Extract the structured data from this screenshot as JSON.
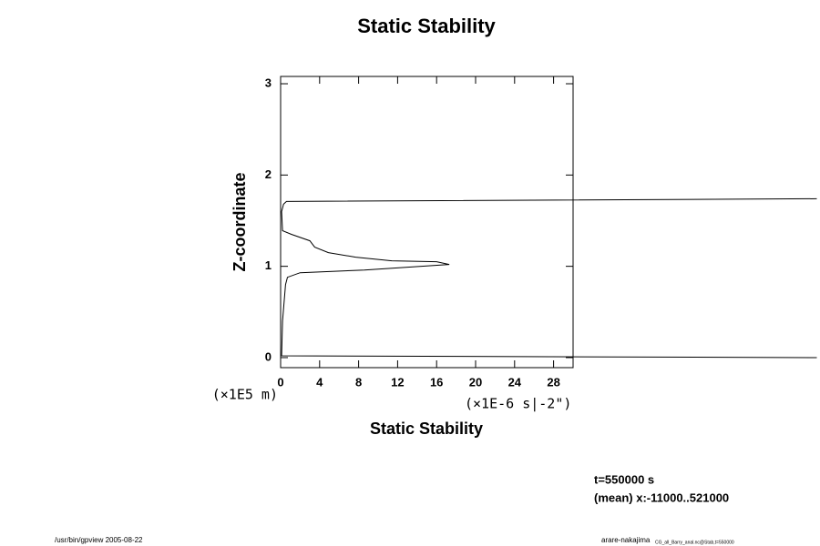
{
  "chart_data": {
    "type": "line",
    "title": "Static Stability",
    "x_label": "Static Stability",
    "y_label": "Z-coordinate",
    "y_unit": "(×1E5 m)",
    "x_unit": "(×1E-6 s|-2\")",
    "annotations": [
      "t=550000 s",
      "(mean) x:-11000..521000"
    ],
    "footer_left": "/usr/bin/gpview 2005-08-22",
    "footer_right": "arare-nakajima",
    "footer_right_small": "CG_all_Barry_anal.nc@Stab,t=550000",
    "color": "#000000",
    "x": [
      55,
      0.1,
      0.2,
      0.5,
      0.7,
      2,
      8.6,
      17.3,
      16,
      11.4,
      7.7,
      4.9,
      3.5,
      3.0,
      1.1,
      0.2,
      0.1,
      0.3,
      0.6,
      55
    ],
    "values": [
      0.0,
      0.02,
      0.4,
      0.8,
      0.88,
      0.93,
      0.96,
      1.02,
      1.05,
      1.06,
      1.1,
      1.15,
      1.21,
      1.28,
      1.35,
      1.39,
      1.6,
      1.68,
      1.71,
      1.74
    ],
    "xlim": [
      0,
      30
    ],
    "xticks": [
      0,
      4,
      8,
      12,
      16,
      20,
      24,
      28
    ],
    "ylim": [
      -0.11,
      3.08
    ],
    "yticks": [
      0,
      1,
      2,
      3
    ]
  }
}
